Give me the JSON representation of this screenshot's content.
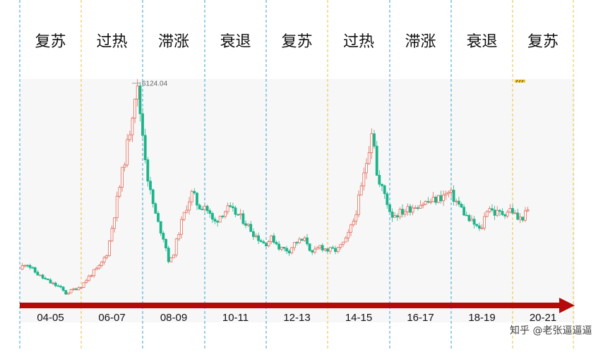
{
  "chart_data": {
    "type": "candlestick",
    "phases": [
      "复苏",
      "过热",
      "滞涨",
      "衰退",
      "复苏",
      "过热",
      "滞涨",
      "衰退",
      "复苏"
    ],
    "periods": [
      "04-05",
      "06-07",
      "08-09",
      "10-11",
      "12-13",
      "14-15",
      "16-17",
      "18-19",
      "20-21"
    ],
    "peak_label": "6124.04",
    "close_path": [
      [
        2004.0,
        1590
      ],
      [
        2004.2,
        1760
      ],
      [
        2004.45,
        1550
      ],
      [
        2004.7,
        1400
      ],
      [
        2005.0,
        1260
      ],
      [
        2005.3,
        1150
      ],
      [
        2005.5,
        1000
      ],
      [
        2005.7,
        1080
      ],
      [
        2006.0,
        1180
      ],
      [
        2006.3,
        1450
      ],
      [
        2006.6,
        1650
      ],
      [
        2006.85,
        2000
      ],
      [
        2007.05,
        2800
      ],
      [
        2007.3,
        3800
      ],
      [
        2007.55,
        4800
      ],
      [
        2007.8,
        6124
      ],
      [
        2007.95,
        5200
      ],
      [
        2008.2,
        3600
      ],
      [
        2008.45,
        2800
      ],
      [
        2008.7,
        2300
      ],
      [
        2008.85,
        1750
      ],
      [
        2008.95,
        1850
      ],
      [
        2009.2,
        2600
      ],
      [
        2009.45,
        3200
      ],
      [
        2009.6,
        3450
      ],
      [
        2009.8,
        3100
      ],
      [
        2010.0,
        3150
      ],
      [
        2010.3,
        2700
      ],
      [
        2010.55,
        2950
      ],
      [
        2010.75,
        3050
      ],
      [
        2011.0,
        2950
      ],
      [
        2011.3,
        2750
      ],
      [
        2011.6,
        2450
      ],
      [
        2011.95,
        2200
      ],
      [
        2012.2,
        2350
      ],
      [
        2012.45,
        2100
      ],
      [
        2012.75,
        2050
      ],
      [
        2012.95,
        2250
      ],
      [
        2013.3,
        2300
      ],
      [
        2013.5,
        1950
      ],
      [
        2013.75,
        2150
      ],
      [
        2014.0,
        2050
      ],
      [
        2014.3,
        2050
      ],
      [
        2014.6,
        2300
      ],
      [
        2014.85,
        2800
      ],
      [
        2015.1,
        3600
      ],
      [
        2015.3,
        4400
      ],
      [
        2015.45,
        5166
      ],
      [
        2015.6,
        3700
      ],
      [
        2015.8,
        3500
      ],
      [
        2016.05,
        2900
      ],
      [
        2016.3,
        2950
      ],
      [
        2016.6,
        3050
      ],
      [
        2016.85,
        3150
      ],
      [
        2017.1,
        3200
      ],
      [
        2017.4,
        3250
      ],
      [
        2017.7,
        3350
      ],
      [
        2017.95,
        3450
      ],
      [
        2018.1,
        3300
      ],
      [
        2018.3,
        3100
      ],
      [
        2018.55,
        2800
      ],
      [
        2018.8,
        2650
      ],
      [
        2018.95,
        2500
      ],
      [
        2019.2,
        3150
      ],
      [
        2019.4,
        2950
      ],
      [
        2019.7,
        2950
      ],
      [
        2019.95,
        3050
      ],
      [
        2020.2,
        2780
      ],
      [
        2020.4,
        2900
      ],
      [
        2020.5,
        3000
      ]
    ],
    "colors": {
      "up": "#e06a5a",
      "down": "#1cb48a",
      "arrow": "#b50a0a",
      "phase_line_blue": "#3aa2cf",
      "phase_line_yellow": "#e8bf3a",
      "panel": "#f7f7f7"
    }
  },
  "watermark": "知乎 @老张逼逼逼"
}
